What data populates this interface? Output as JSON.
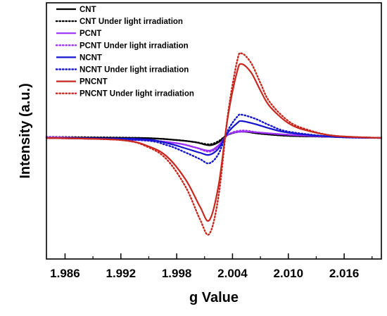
{
  "chart_data": {
    "type": "line",
    "title": "",
    "xlabel": "g Value",
    "ylabel": "Intensity (a.u.)",
    "xlim": [
      1.984,
      2.02
    ],
    "ylim": [
      -1.0,
      1.0
    ],
    "x_ticks": [
      1.986,
      1.992,
      1.998,
      2.004,
      2.01,
      2.016
    ],
    "x_tick_labels": [
      "1.986",
      "1.992",
      "1.998",
      "2.004",
      "2.010",
      "2.016"
    ],
    "y_ticks_labeled": false,
    "grid": false,
    "legend_position": "top-left",
    "series": [
      {
        "name": "CNT",
        "style": "solid",
        "color": "#000000",
        "x": [
          1.984,
          1.994,
          1.998,
          2.0,
          2.0015,
          2.0025,
          2.0035,
          2.005,
          2.007,
          2.01,
          2.015,
          2.02
        ],
        "y": [
          0.0,
          0.0,
          -0.02,
          -0.04,
          -0.07,
          -0.04,
          0.03,
          0.06,
          0.04,
          0.02,
          0.01,
          0.0
        ]
      },
      {
        "name": "CNT Under light irradiation",
        "style": "dotted",
        "color": "#000000",
        "x": [
          1.984,
          1.994,
          1.998,
          2.0,
          2.0015,
          2.0025,
          2.0035,
          2.005,
          2.007,
          2.01,
          2.015,
          2.02
        ],
        "y": [
          0.01,
          0.0,
          -0.02,
          -0.04,
          -0.06,
          -0.03,
          0.03,
          0.06,
          0.04,
          0.02,
          0.01,
          0.0
        ]
      },
      {
        "name": "PCNT",
        "style": "solid",
        "color": "#9b30ff",
        "x": [
          1.984,
          1.994,
          1.998,
          2.0,
          2.0015,
          2.0025,
          2.0035,
          2.005,
          2.007,
          2.01,
          2.015,
          2.02
        ],
        "y": [
          0.0,
          -0.02,
          -0.05,
          -0.09,
          -0.12,
          -0.07,
          0.03,
          0.06,
          0.05,
          0.03,
          0.01,
          0.0
        ]
      },
      {
        "name": "PCNT Under light irradiation",
        "style": "dotted",
        "color": "#9b30ff",
        "x": [
          1.984,
          1.994,
          1.998,
          2.0,
          2.0015,
          2.0025,
          2.0035,
          2.005,
          2.007,
          2.01,
          2.015,
          2.02
        ],
        "y": [
          0.01,
          -0.02,
          -0.05,
          -0.09,
          -0.13,
          -0.08,
          0.03,
          0.07,
          0.05,
          0.03,
          0.01,
          0.0
        ]
      },
      {
        "name": "NCNT",
        "style": "solid",
        "color": "#1515d0",
        "x": [
          1.984,
          1.994,
          1.997,
          1.999,
          2.0005,
          2.0015,
          2.0025,
          2.0035,
          2.0045,
          2.005,
          2.0065,
          2.008,
          2.01,
          2.015,
          2.02
        ],
        "y": [
          0.0,
          -0.01,
          -0.05,
          -0.1,
          -0.14,
          -0.16,
          -0.1,
          0.05,
          0.14,
          0.16,
          0.13,
          0.09,
          0.05,
          0.01,
          0.0
        ]
      },
      {
        "name": "NCNT Under light irradiation",
        "style": "dotted",
        "color": "#1515d0",
        "x": [
          1.984,
          1.994,
          1.997,
          1.999,
          2.0005,
          2.0015,
          2.0025,
          2.0035,
          2.0045,
          2.005,
          2.0065,
          2.008,
          2.01,
          2.015,
          2.02
        ],
        "y": [
          0.0,
          -0.02,
          -0.07,
          -0.14,
          -0.2,
          -0.24,
          -0.15,
          0.07,
          0.2,
          0.22,
          0.18,
          0.12,
          0.06,
          0.01,
          0.0
        ]
      },
      {
        "name": "PNCNT",
        "style": "solid",
        "color": "#c8281e",
        "x": [
          1.984,
          1.992,
          1.995,
          1.997,
          1.999,
          2.0005,
          2.0015,
          2.0025,
          2.0035,
          2.0045,
          2.005,
          2.006,
          2.007,
          2.008,
          2.01,
          2.012,
          2.015,
          2.02
        ],
        "y": [
          0.0,
          -0.02,
          -0.08,
          -0.18,
          -0.4,
          -0.65,
          -0.78,
          -0.45,
          0.2,
          0.63,
          0.7,
          0.62,
          0.45,
          0.3,
          0.14,
          0.07,
          0.02,
          0.0
        ]
      },
      {
        "name": "PNCNT Under light irradiation",
        "style": "dotted",
        "color": "#c8281e",
        "x": [
          1.984,
          1.992,
          1.995,
          1.997,
          1.999,
          2.0005,
          2.0015,
          2.0025,
          2.0035,
          2.0045,
          2.005,
          2.006,
          2.007,
          2.008,
          2.01,
          2.012,
          2.015,
          2.02
        ],
        "y": [
          0.0,
          -0.02,
          -0.09,
          -0.21,
          -0.47,
          -0.77,
          -0.91,
          -0.55,
          0.22,
          0.73,
          0.8,
          0.71,
          0.52,
          0.34,
          0.16,
          0.08,
          0.02,
          0.0
        ]
      }
    ]
  }
}
